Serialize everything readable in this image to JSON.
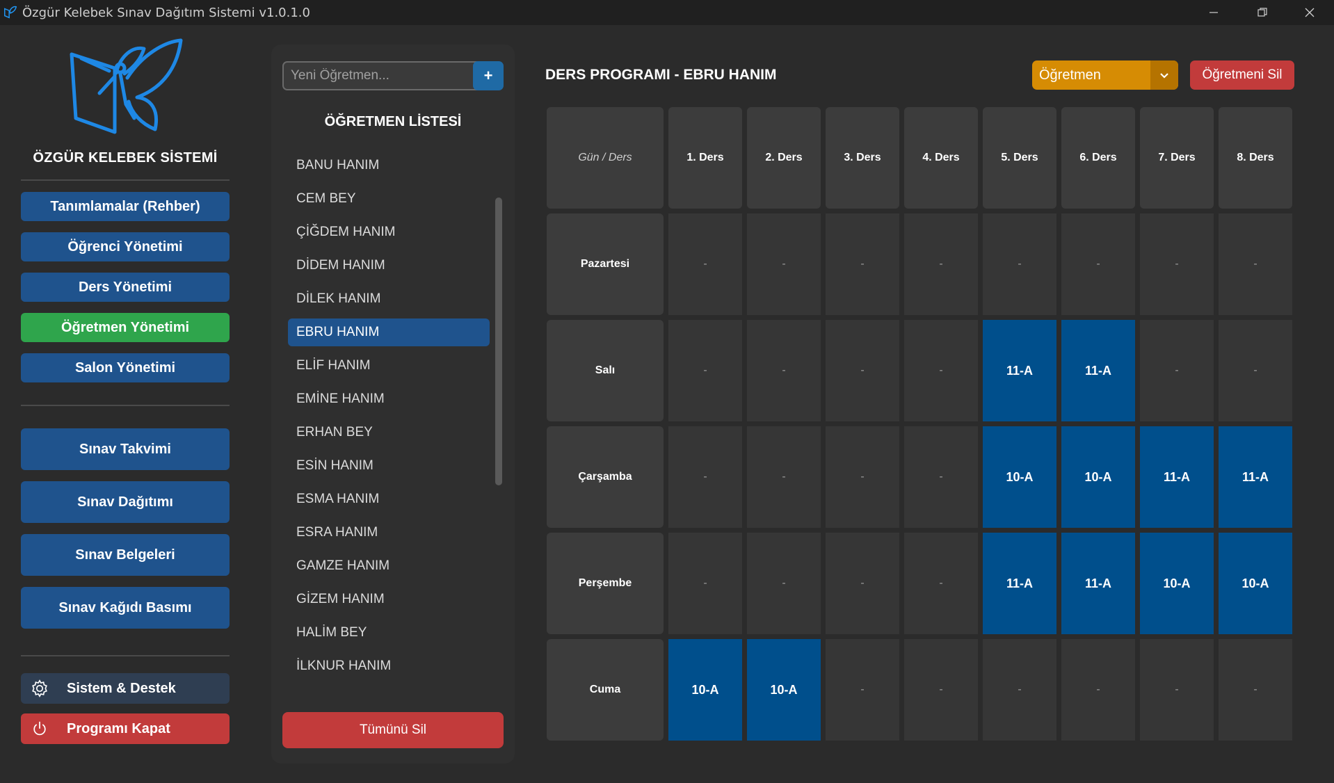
{
  "window": {
    "title": "Özgür Kelebek Sınav Dağıtım Sistemi v1.0.1.0"
  },
  "sidebar": {
    "brand": "ÖZGÜR KELEBEK SİSTEMİ",
    "nav_top": [
      {
        "label": "Tanımlamalar (Rehber)",
        "state": "normal"
      },
      {
        "label": "Öğrenci Yönetimi",
        "state": "normal"
      },
      {
        "label": "Ders Yönetimi",
        "state": "normal"
      },
      {
        "label": "Öğretmen Yönetimi",
        "state": "active"
      },
      {
        "label": "Salon Yönetimi",
        "state": "normal"
      }
    ],
    "nav_exam": [
      {
        "label": "Sınav Takvimi"
      },
      {
        "label": "Sınav Dağıtımı"
      },
      {
        "label": "Sınav Belgeleri"
      },
      {
        "label": "Sınav Kağıdı Basımı"
      }
    ],
    "system_label": "Sistem & Destek",
    "quit_label": "Programı Kapat"
  },
  "teacher_panel": {
    "new_placeholder": "Yeni Öğretmen...",
    "add_label": "+",
    "title": "ÖĞRETMEN LİSTESİ",
    "selected": "EBRU HANIM",
    "teachers": [
      "BANU HANIM",
      "CEM BEY",
      "ÇİĞDEM HANIM",
      "DİDEM HANIM",
      "DİLEK HANIM",
      "EBRU HANIM",
      "ELİF HANIM",
      "EMİNE HANIM",
      "ERHAN BEY",
      "ESİN HANIM",
      "ESMA HANIM",
      "ESRA HANIM",
      "GAMZE HANIM",
      "GİZEM HANIM",
      "HALİM BEY",
      "İLKNUR HANIM"
    ],
    "delete_all_label": "Tümünü Sil"
  },
  "schedule": {
    "title": "DERS PROGRAMI - EBRU HANIM",
    "role_value": "Öğretmen",
    "delete_teacher_label": "Öğretmeni Sil",
    "corner_label": "Gün / Ders",
    "periods": [
      "1. Ders",
      "2. Ders",
      "3. Ders",
      "4. Ders",
      "5. Ders",
      "6. Ders",
      "7. Ders",
      "8. Ders"
    ],
    "rows": [
      {
        "day": "Pazartesi",
        "cells": [
          "-",
          "-",
          "-",
          "-",
          "-",
          "-",
          "-",
          "-"
        ]
      },
      {
        "day": "Salı",
        "cells": [
          "-",
          "-",
          "-",
          "-",
          "11-A",
          "11-A",
          "-",
          "-"
        ]
      },
      {
        "day": "Çarşamba",
        "cells": [
          "-",
          "-",
          "-",
          "-",
          "10-A",
          "10-A",
          "11-A",
          "11-A"
        ]
      },
      {
        "day": "Perşembe",
        "cells": [
          "-",
          "-",
          "-",
          "-",
          "11-A",
          "11-A",
          "10-A",
          "10-A"
        ]
      },
      {
        "day": "Cuma",
        "cells": [
          "10-A",
          "10-A",
          "-",
          "-",
          "-",
          "-",
          "-",
          "-"
        ]
      }
    ]
  },
  "colors": {
    "primary": "#1f538d",
    "active": "#2fa54c",
    "danger": "#c23b3b",
    "accent_orange": "#d68c04",
    "filled_cell": "#004f8c",
    "logo_blue": "#1e88e5"
  }
}
